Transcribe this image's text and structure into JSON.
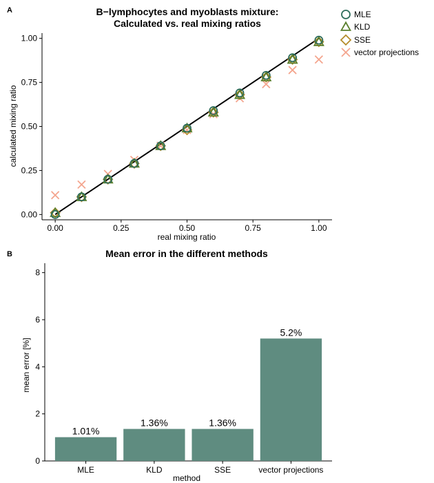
{
  "colors": {
    "mle": "#2e6e5c",
    "kld": "#5a7f2d",
    "sse": "#b58c2a",
    "vector_projections": "#f4a58e",
    "bar_fill": "#5f8c80",
    "identity_line": "#000000"
  },
  "chart_data": [
    {
      "panel_label": "A",
      "type": "scatter",
      "title": "B−lymphocytes and myoblasts mixture:",
      "subtitle": "Calculated vs. real mixing ratios",
      "xlabel": "real mixing ratio",
      "ylabel": "calculated mixing ratio",
      "xlim": [
        -0.05,
        1.05
      ],
      "ylim": [
        -0.03,
        1.03
      ],
      "xticks": [
        0.0,
        0.25,
        0.5,
        0.75,
        1.0
      ],
      "xtick_labels": [
        "0.00",
        "0.25",
        "0.50",
        "0.75",
        "1.00"
      ],
      "yticks": [
        0.0,
        0.25,
        0.5,
        0.75,
        1.0
      ],
      "ytick_labels": [
        "0.00",
        "0.25",
        "0.50",
        "0.75",
        "1.00"
      ],
      "grid": false,
      "legend_position": "right-top",
      "reference_line": {
        "from": [
          0,
          0
        ],
        "to": [
          1,
          1
        ]
      },
      "series": [
        {
          "name": "MLE",
          "marker": "circle",
          "color_key": "mle",
          "x": [
            0.0,
            0.1,
            0.2,
            0.3,
            0.4,
            0.5,
            0.6,
            0.7,
            0.8,
            0.9,
            1.0
          ],
          "y": [
            0.0,
            0.1,
            0.2,
            0.29,
            0.39,
            0.49,
            0.59,
            0.69,
            0.79,
            0.89,
            0.99
          ]
        },
        {
          "name": "KLD",
          "marker": "triangle",
          "color_key": "kld",
          "x": [
            0.0,
            0.1,
            0.2,
            0.3,
            0.4,
            0.5,
            0.6,
            0.7,
            0.8,
            0.9,
            1.0
          ],
          "y": [
            0.01,
            0.1,
            0.2,
            0.29,
            0.39,
            0.49,
            0.58,
            0.68,
            0.78,
            0.88,
            0.98
          ]
        },
        {
          "name": "SSE",
          "marker": "diamond",
          "color_key": "sse",
          "x": [
            0.0,
            0.1,
            0.2,
            0.3,
            0.4,
            0.5,
            0.6,
            0.7,
            0.8,
            0.9,
            1.0
          ],
          "y": [
            0.01,
            0.1,
            0.2,
            0.29,
            0.39,
            0.48,
            0.58,
            0.68,
            0.78,
            0.88,
            0.98
          ]
        },
        {
          "name": "vector projections",
          "marker": "x",
          "color_key": "vector_projections",
          "x": [
            0.0,
            0.1,
            0.2,
            0.3,
            0.4,
            0.5,
            0.6,
            0.7,
            0.8,
            0.9,
            1.0
          ],
          "y": [
            0.11,
            0.17,
            0.23,
            0.31,
            0.39,
            0.48,
            0.57,
            0.66,
            0.74,
            0.82,
            0.88
          ]
        }
      ]
    },
    {
      "panel_label": "B",
      "type": "bar",
      "title": "Mean error in the different methods",
      "xlabel": "method",
      "ylabel": "mean error [%]",
      "ylim": [
        0,
        8.4
      ],
      "yticks": [
        0,
        2,
        4,
        6,
        8
      ],
      "ytick_labels": [
        "0",
        "2",
        "4",
        "6",
        "8"
      ],
      "grid": false,
      "categories": [
        "MLE",
        "KLD",
        "SSE",
        "vector projections"
      ],
      "values": [
        1.01,
        1.36,
        1.36,
        5.2
      ],
      "value_labels": [
        "1.01%",
        "1.36%",
        "1.36%",
        "5.2%"
      ]
    }
  ]
}
